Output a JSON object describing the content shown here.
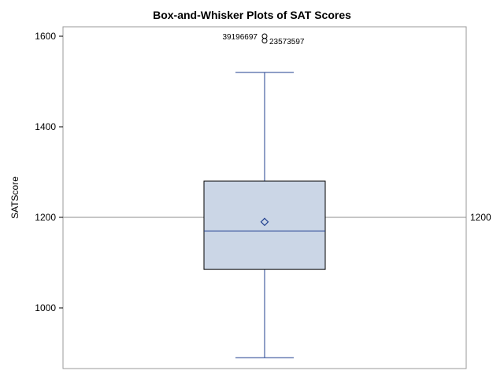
{
  "chart_data": {
    "type": "box",
    "title": "Box-and-Whisker Plots of SAT Scores",
    "xlabel": "",
    "ylabel": "SATScore",
    "ylim": [
      870,
      1630
    ],
    "yticks": [
      1000,
      1200,
      1400,
      1600
    ],
    "grid": false,
    "reference_line": {
      "value": 1200,
      "label": "1200"
    },
    "box": {
      "min": 890,
      "q1": 1085,
      "median": 1170,
      "q3": 1280,
      "max": 1520,
      "mean": 1190
    },
    "outliers": [
      {
        "value": 1600,
        "label": "39196697",
        "label_side": "left"
      },
      {
        "value": 1590,
        "label": "23573597",
        "label_side": "right"
      }
    ],
    "colors": {
      "box_fill": "#cbd6e6",
      "median_line": "#1f3f8f",
      "whisker": "#1f3f8f",
      "mean_marker": "#1f3f8f",
      "outlier_marker": "#1f3f8f",
      "reference_line": "#8c8c8c",
      "frame": "#9a9a9a"
    }
  }
}
